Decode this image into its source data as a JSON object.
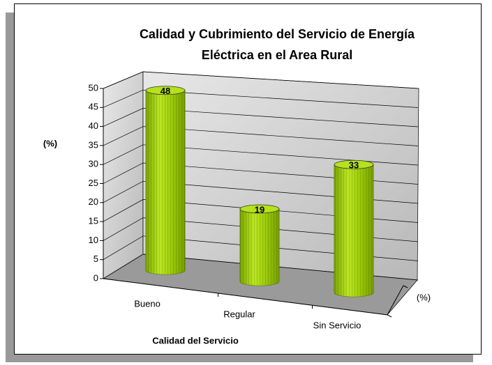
{
  "chart_data": {
    "type": "bar3d",
    "title": [
      "Calidad y Cubrimiento del Servicio de Energía",
      "Eléctrica  en el Area Rural"
    ],
    "y_label": "(%)",
    "x_label": "Calidad del Servicio",
    "categories": [
      "Bueno",
      "Regular",
      "Sin Servicio"
    ],
    "series": [
      {
        "name": "(%)",
        "color": "#99cc00",
        "values": [
          48,
          19,
          33
        ]
      }
    ],
    "ylim": [
      0,
      50
    ],
    "yticks": [
      0,
      5,
      10,
      15,
      20,
      25,
      30,
      35,
      40,
      45,
      50
    ],
    "grid": true
  }
}
